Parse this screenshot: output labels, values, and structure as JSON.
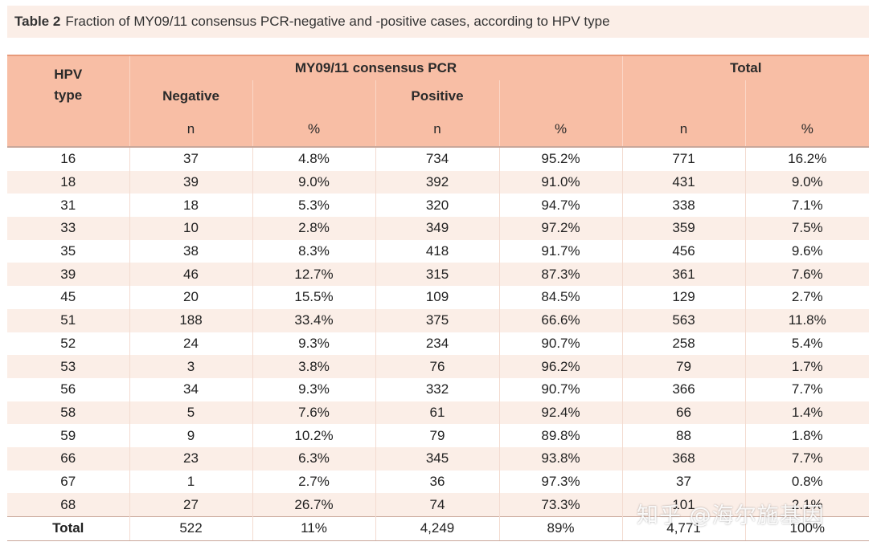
{
  "caption": {
    "label": "Table 2",
    "text": "Fraction of MY09/11 consensus PCR-negative and -positive cases, according to HPV type"
  },
  "header": {
    "hpv_type": "HPV type",
    "group_pcr": "MY09/11 consensus PCR",
    "group_total": "Total",
    "negative": "Negative",
    "positive": "Positive",
    "sub": [
      "n",
      "%",
      "n",
      "%",
      "n",
      "%"
    ]
  },
  "rows": [
    [
      "16",
      "37",
      "4.8%",
      "734",
      "95.2%",
      "771",
      "16.2%"
    ],
    [
      "18",
      "39",
      "9.0%",
      "392",
      "91.0%",
      "431",
      "9.0%"
    ],
    [
      "31",
      "18",
      "5.3%",
      "320",
      "94.7%",
      "338",
      "7.1%"
    ],
    [
      "33",
      "10",
      "2.8%",
      "349",
      "97.2%",
      "359",
      "7.5%"
    ],
    [
      "35",
      "38",
      "8.3%",
      "418",
      "91.7%",
      "456",
      "9.6%"
    ],
    [
      "39",
      "46",
      "12.7%",
      "315",
      "87.3%",
      "361",
      "7.6%"
    ],
    [
      "45",
      "20",
      "15.5%",
      "109",
      "84.5%",
      "129",
      "2.7%"
    ],
    [
      "51",
      "188",
      "33.4%",
      "375",
      "66.6%",
      "563",
      "11.8%"
    ],
    [
      "52",
      "24",
      "9.3%",
      "234",
      "90.7%",
      "258",
      "5.4%"
    ],
    [
      "53",
      "3",
      "3.8%",
      "76",
      "96.2%",
      "79",
      "1.7%"
    ],
    [
      "56",
      "34",
      "9.3%",
      "332",
      "90.7%",
      "366",
      "7.7%"
    ],
    [
      "58",
      "5",
      "7.6%",
      "61",
      "92.4%",
      "66",
      "1.4%"
    ],
    [
      "59",
      "9",
      "10.2%",
      "79",
      "89.8%",
      "88",
      "1.8%"
    ],
    [
      "66",
      "23",
      "6.3%",
      "345",
      "93.8%",
      "368",
      "7.7%"
    ],
    [
      "67",
      "1",
      "2.7%",
      "36",
      "97.3%",
      "37",
      "0.8%"
    ],
    [
      "68",
      "27",
      "26.7%",
      "74",
      "73.3%",
      "101",
      "2.1%"
    ]
  ],
  "total_row": [
    "Total",
    "522",
    "11%",
    "4,249",
    "89%",
    "4,771",
    "100%"
  ],
  "watermark": "知乎 @海尔施基因",
  "colors": {
    "header_bg": "#f8bea5",
    "caption_bg": "#fbeee7",
    "stripe_bg": "#fbeee7"
  }
}
